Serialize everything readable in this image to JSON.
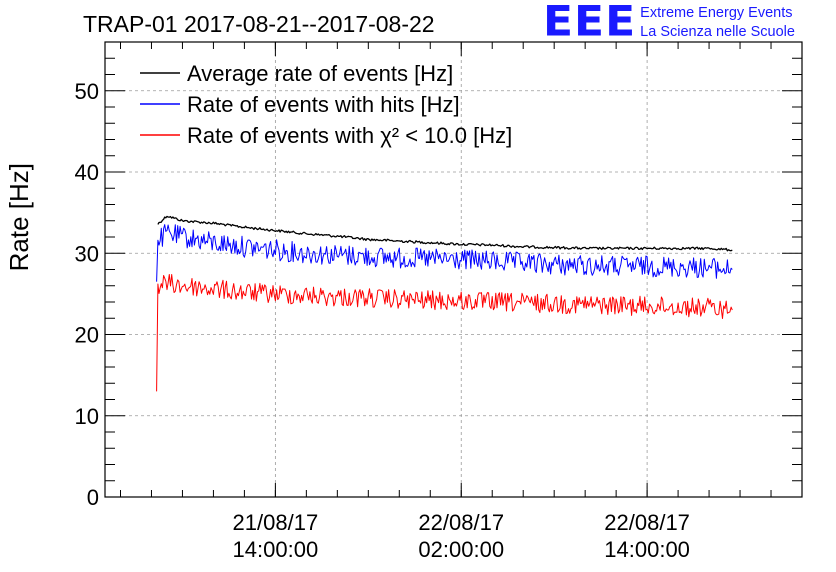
{
  "chart_data": {
    "type": "line",
    "title": "TRAP-01 2017-08-21--2017-08-22",
    "xlabel": "",
    "ylabel": "Rate [Hz]",
    "ylim": [
      0,
      56
    ],
    "yticks": [
      0,
      10,
      20,
      30,
      40,
      50
    ],
    "xlim": [
      "2017-08-21 03:00:00",
      "2017-08-23 00:00:00"
    ],
    "xticks": [
      {
        "date": "21/08/17",
        "time": "14:00:00",
        "at": "2017-08-21 14:00:00"
      },
      {
        "date": "22/08/17",
        "time": "02:00:00",
        "at": "2017-08-22 02:00:00"
      },
      {
        "date": "22/08/17",
        "time": "14:00:00",
        "at": "2017-08-22 14:00:00"
      }
    ],
    "grid": true,
    "legend_position": "top-left",
    "series": [
      {
        "name": "Average rate of events [Hz]",
        "color": "#000000",
        "x": [
          "2017-08-21 06:25:00",
          "2017-08-21 07:00:00",
          "2017-08-21 08:00:00",
          "2017-08-21 10:00:00",
          "2017-08-21 12:00:00",
          "2017-08-21 14:00:00",
          "2017-08-21 16:00:00",
          "2017-08-21 18:00:00",
          "2017-08-21 20:00:00",
          "2017-08-21 22:00:00",
          "2017-08-22 00:00:00",
          "2017-08-22 02:00:00",
          "2017-08-22 04:00:00",
          "2017-08-22 06:00:00",
          "2017-08-22 08:00:00",
          "2017-08-22 10:00:00",
          "2017-08-22 12:00:00",
          "2017-08-22 14:00:00",
          "2017-08-22 16:00:00",
          "2017-08-22 18:00:00",
          "2017-08-22 19:30:00"
        ],
        "values": [
          33.6,
          34.6,
          34.0,
          33.7,
          33.2,
          32.8,
          32.4,
          32.1,
          31.7,
          31.5,
          31.3,
          31.1,
          31.0,
          30.8,
          30.7,
          30.6,
          30.6,
          30.6,
          30.6,
          30.6,
          30.4
        ]
      },
      {
        "name": "Rate of events with hits [Hz]",
        "color": "#0000ff",
        "x": [
          "2017-08-21 06:20:00",
          "2017-08-21 06:25:00",
          "2017-08-21 07:00:00",
          "2017-08-21 08:00:00",
          "2017-08-21 10:00:00",
          "2017-08-21 12:00:00",
          "2017-08-21 14:00:00",
          "2017-08-21 16:00:00",
          "2017-08-21 18:00:00",
          "2017-08-21 20:00:00",
          "2017-08-21 22:00:00",
          "2017-08-22 00:00:00",
          "2017-08-22 02:00:00",
          "2017-08-22 04:00:00",
          "2017-08-22 06:00:00",
          "2017-08-22 08:00:00",
          "2017-08-22 10:00:00",
          "2017-08-22 12:00:00",
          "2017-08-22 14:00:00",
          "2017-08-22 16:00:00",
          "2017-08-22 18:00:00",
          "2017-08-22 19:30:00"
        ],
        "values": [
          26.5,
          31.5,
          32.5,
          32.0,
          31.3,
          30.8,
          30.4,
          30.0,
          29.8,
          29.6,
          29.4,
          29.3,
          29.2,
          29.0,
          28.8,
          28.6,
          28.5,
          28.4,
          28.4,
          28.3,
          28.2,
          28.0
        ]
      },
      {
        "name": "Rate of events with χ² < 10.0 [Hz]",
        "color": "#ff0000",
        "x": [
          "2017-08-21 06:20:00",
          "2017-08-21 06:25:00",
          "2017-08-21 07:00:00",
          "2017-08-21 08:00:00",
          "2017-08-21 10:00:00",
          "2017-08-21 12:00:00",
          "2017-08-21 14:00:00",
          "2017-08-21 16:00:00",
          "2017-08-21 18:00:00",
          "2017-08-21 20:00:00",
          "2017-08-21 22:00:00",
          "2017-08-22 00:00:00",
          "2017-08-22 02:00:00",
          "2017-08-22 04:00:00",
          "2017-08-22 06:00:00",
          "2017-08-22 08:00:00",
          "2017-08-22 10:00:00",
          "2017-08-22 12:00:00",
          "2017-08-22 14:00:00",
          "2017-08-22 16:00:00",
          "2017-08-22 18:00:00",
          "2017-08-22 19:30:00"
        ],
        "values": [
          13.0,
          26.0,
          26.3,
          26.0,
          25.6,
          25.2,
          25.0,
          24.8,
          24.6,
          24.5,
          24.3,
          24.2,
          24.1,
          24.0,
          23.9,
          23.8,
          23.7,
          23.6,
          23.5,
          23.4,
          23.3,
          23.0
        ]
      }
    ]
  },
  "logo": {
    "mark": "EEE",
    "line1": "Extreme Energy Events",
    "line2": "La Scienza nelle Scuole"
  }
}
